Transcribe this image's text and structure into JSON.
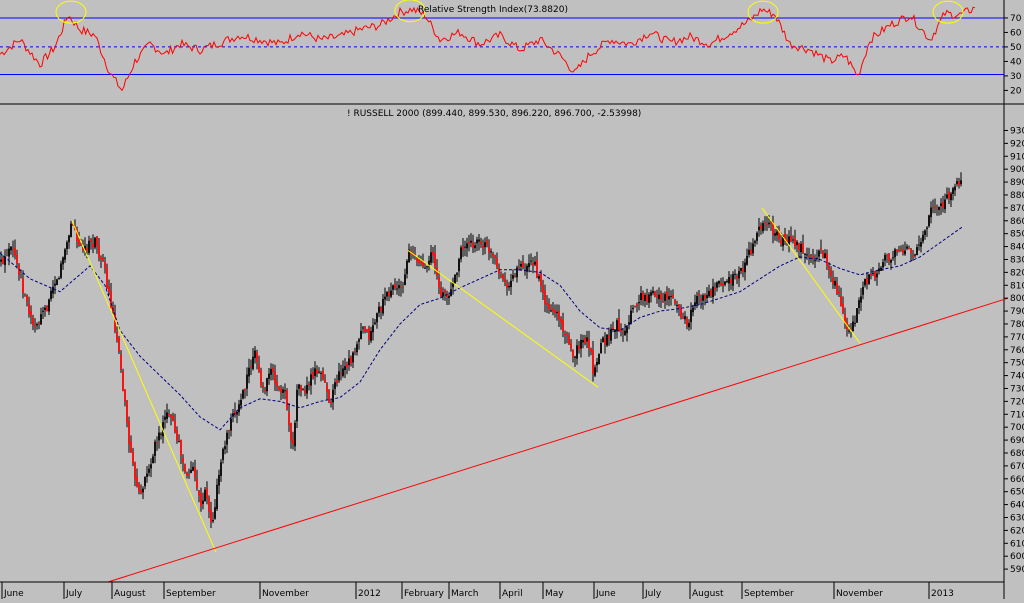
{
  "chart_data": [
    {
      "type": "line",
      "title": "Relative Strength Index(73.8820)",
      "ylim": [
        12,
        81
      ],
      "yticks": [
        20,
        30,
        40,
        50,
        60,
        70
      ],
      "reference_lines": [
        {
          "value": 70,
          "style": "solid",
          "color": "#0000ff"
        },
        {
          "value": 50,
          "style": "dashed",
          "color": "#0000ff"
        },
        {
          "value": 31,
          "style": "solid",
          "color": "#0000ff"
        }
      ],
      "series": [
        {
          "color": "#ff0000",
          "x": [
            0,
            20,
            40,
            55,
            68,
            80,
            95,
            110,
            122,
            135,
            150,
            165,
            180,
            200,
            220,
            240,
            260,
            280,
            300,
            320,
            340,
            360,
            380,
            400,
            412,
            425,
            440,
            460,
            480,
            500,
            520,
            540,
            560,
            575,
            590,
            610,
            630,
            650,
            670,
            690,
            710,
            730,
            750,
            762,
            775,
            790,
            810,
            830,
            845,
            858,
            870,
            890,
            910,
            930,
            945,
            960,
            975
          ],
          "values": [
            45,
            55,
            38,
            50,
            72,
            62,
            58,
            32,
            20,
            40,
            52,
            45,
            52,
            48,
            53,
            58,
            55,
            52,
            60,
            55,
            57,
            62,
            65,
            74,
            76,
            72,
            55,
            60,
            52,
            58,
            48,
            55,
            44,
            32,
            45,
            55,
            52,
            60,
            53,
            57,
            52,
            60,
            68,
            76,
            72,
            52,
            48,
            40,
            44,
            30,
            55,
            65,
            72,
            55,
            73,
            72,
            77
          ]
        }
      ],
      "annotations": [
        {
          "type": "ellipse",
          "x": 71,
          "value": 74,
          "color": "#ffff00"
        },
        {
          "type": "ellipse",
          "x": 410,
          "value": 75,
          "color": "#ffff00"
        },
        {
          "type": "ellipse",
          "x": 763,
          "value": 74,
          "color": "#ffff00"
        },
        {
          "type": "ellipse",
          "x": 948,
          "value": 74,
          "color": "#ffff00"
        }
      ]
    },
    {
      "type": "candlestick",
      "title": "! RUSSELL 2000 (899.440, 899.530, 896.220, 896.700, -2.53998)",
      "ylim": [
        580,
        935
      ],
      "yticks": [
        590,
        600,
        610,
        620,
        630,
        640,
        650,
        660,
        670,
        680,
        690,
        700,
        710,
        720,
        730,
        740,
        750,
        760,
        770,
        780,
        790,
        800,
        810,
        820,
        830,
        840,
        850,
        860,
        870,
        880,
        890,
        900,
        910,
        920,
        930
      ],
      "xlabels": [
        {
          "label": "June",
          "x": 4
        },
        {
          "label": "July",
          "x": 66
        },
        {
          "label": "August",
          "x": 114
        },
        {
          "label": "September",
          "x": 166
        },
        {
          "label": "November",
          "x": 262
        },
        {
          "label": "2012",
          "x": 358
        },
        {
          "label": "February",
          "x": 404
        },
        {
          "label": "March",
          "x": 451
        },
        {
          "label": "April",
          "x": 502
        },
        {
          "label": "May",
          "x": 545
        },
        {
          "label": "June",
          "x": 596
        },
        {
          "label": "July",
          "x": 645
        },
        {
          "label": "August",
          "x": 692
        },
        {
          "label": "September",
          "x": 744
        },
        {
          "label": "November",
          "x": 836
        },
        {
          "label": "2013",
          "x": 931
        }
      ],
      "price_path": {
        "x": [
          2,
          12,
          22,
          35,
          45,
          58,
          72,
          82,
          95,
          105,
          112,
          118,
          124,
          132,
          140,
          148,
          155,
          162,
          170,
          178,
          186,
          194,
          200,
          206,
          212,
          218,
          224,
          232,
          240,
          248,
          256,
          262,
          270,
          278,
          286,
          292,
          298,
          304,
          312,
          320,
          330,
          338,
          346,
          354,
          362,
          370,
          378,
          386,
          394,
          402,
          408,
          416,
          424,
          432,
          440,
          448,
          456,
          462,
          470,
          478,
          486,
          494,
          502,
          510,
          518,
          526,
          534,
          540,
          548,
          556,
          564,
          572,
          580,
          588,
          594,
          600,
          608,
          616,
          624,
          632,
          640,
          648,
          656,
          664,
          672,
          680,
          688,
          696,
          704,
          712,
          720,
          728,
          736,
          744,
          752,
          758,
          764,
          770,
          776,
          782,
          790,
          798,
          806,
          812,
          818,
          824,
          830,
          836,
          842,
          848,
          854,
          860,
          866,
          872,
          878,
          884,
          890,
          896,
          902,
          908,
          914,
          920,
          926,
          932,
          938,
          944,
          950,
          956,
          962
        ],
        "values": [
          828,
          845,
          808,
          775,
          790,
          815,
          860,
          835,
          845,
          820,
          790,
          760,
          725,
          670,
          650,
          665,
          685,
          700,
          715,
          690,
          660,
          670,
          640,
          650,
          620,
          660,
          685,
          705,
          720,
          740,
          760,
          725,
          745,
          730,
          725,
          680,
          735,
          725,
          740,
          745,
          720,
          740,
          750,
          755,
          775,
          770,
          790,
          800,
          810,
          805,
          835,
          830,
          825,
          835,
          805,
          800,
          820,
          840,
          840,
          845,
          840,
          835,
          815,
          810,
          825,
          820,
          830,
          810,
          790,
          790,
          775,
          755,
          765,
          770,
          740,
          765,
          770,
          780,
          775,
          790,
          800,
          800,
          805,
          800,
          800,
          790,
          780,
          800,
          800,
          805,
          810,
          815,
          815,
          825,
          840,
          850,
          860,
          855,
          850,
          845,
          845,
          840,
          835,
          830,
          835,
          835,
          820,
          810,
          790,
          770,
          780,
          800,
          815,
          815,
          820,
          830,
          830,
          835,
          835,
          840,
          835,
          840,
          855,
          870,
          870,
          875,
          880,
          885,
          895
        ]
      },
      "moving_average": {
        "x": [
          0,
          30,
          60,
          90,
          105,
          120,
          140,
          160,
          180,
          200,
          220,
          240,
          260,
          280,
          300,
          320,
          340,
          360,
          380,
          400,
          420,
          440,
          460,
          480,
          500,
          520,
          540,
          560,
          580,
          600,
          620,
          640,
          660,
          680,
          700,
          720,
          740,
          760,
          780,
          800,
          820,
          840,
          860,
          880,
          900,
          920,
          940,
          962
        ],
        "values": [
          835,
          815,
          805,
          825,
          810,
          775,
          755,
          740,
          725,
          708,
          698,
          715,
          722,
          720,
          715,
          720,
          723,
          735,
          760,
          780,
          795,
          800,
          808,
          815,
          822,
          822,
          820,
          810,
          790,
          777,
          775,
          785,
          790,
          792,
          795,
          800,
          805,
          815,
          825,
          832,
          830,
          823,
          818,
          822,
          825,
          832,
          843,
          855
        ]
      },
      "trend_lines": [
        {
          "color": "#ffff00",
          "points": [
            [
              72,
              860
            ],
            [
              216,
              603
            ]
          ]
        },
        {
          "color": "#ffff00",
          "points": [
            [
              408,
              837
            ],
            [
              598,
              731
            ]
          ]
        },
        {
          "color": "#ffff00",
          "points": [
            [
              762,
              870
            ],
            [
              860,
              765
            ]
          ]
        },
        {
          "color": "#ff0000",
          "points": [
            [
              108,
              580
            ],
            [
              1008,
              800
            ]
          ]
        }
      ]
    }
  ]
}
